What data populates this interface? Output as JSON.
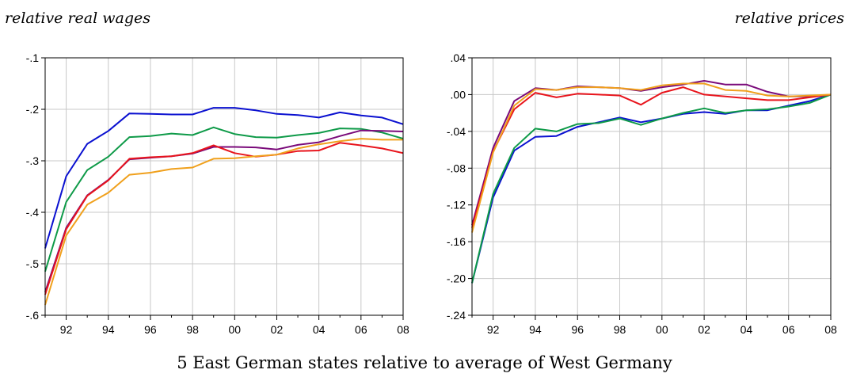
{
  "caption": "5 East German states relative to average of West Germany",
  "colors": {
    "blue": "#0a10d0",
    "green": "#0e9a48",
    "purple": "#7a0a7a",
    "red": "#e8141c",
    "orange": "#f0a01c"
  },
  "chart_data": [
    {
      "type": "line",
      "title": "relative real wages",
      "x": [
        1991,
        1992,
        1993,
        1994,
        1995,
        1996,
        1997,
        1998,
        1999,
        2000,
        2001,
        2002,
        2003,
        2004,
        2005,
        2006,
        2007,
        2008
      ],
      "x_ticks": [
        1992,
        1994,
        1996,
        1998,
        2000,
        2002,
        2004,
        2006,
        2008
      ],
      "x_tick_labels": [
        "92",
        "94",
        "96",
        "98",
        "00",
        "02",
        "04",
        "06",
        "08"
      ],
      "ylim": [
        -0.6,
        -0.1
      ],
      "y_ticks": [
        -0.6,
        -0.5,
        -0.4,
        -0.3,
        -0.2,
        -0.1
      ],
      "y_tick_labels": [
        "-.6",
        "-.5",
        "-.4",
        "-.3",
        "-.2",
        "-.1"
      ],
      "grid": true,
      "series": [
        {
          "color": "#0a10d0",
          "values": [
            -0.47,
            -0.33,
            -0.267,
            -0.242,
            -0.208,
            -0.209,
            -0.21,
            -0.21,
            -0.197,
            -0.197,
            -0.202,
            -0.209,
            -0.211,
            -0.216,
            -0.206,
            -0.212,
            -0.216,
            -0.229
          ]
        },
        {
          "color": "#0e9a48",
          "values": [
            -0.515,
            -0.38,
            -0.318,
            -0.292,
            -0.254,
            -0.252,
            -0.247,
            -0.25,
            -0.235,
            -0.248,
            -0.254,
            -0.255,
            -0.25,
            -0.246,
            -0.237,
            -0.238,
            -0.245,
            -0.257
          ]
        },
        {
          "color": "#7a0a7a",
          "values": [
            -0.555,
            -0.43,
            -0.367,
            -0.337,
            -0.297,
            -0.294,
            -0.291,
            -0.286,
            -0.273,
            -0.273,
            -0.274,
            -0.278,
            -0.269,
            -0.264,
            -0.252,
            -0.241,
            -0.242,
            -0.243
          ]
        },
        {
          "color": "#e8141c",
          "values": [
            -0.56,
            -0.433,
            -0.368,
            -0.338,
            -0.296,
            -0.293,
            -0.291,
            -0.285,
            -0.27,
            -0.285,
            -0.292,
            -0.288,
            -0.281,
            -0.28,
            -0.265,
            -0.27,
            -0.276,
            -0.285
          ]
        },
        {
          "color": "#f0a01c",
          "values": [
            -0.58,
            -0.445,
            -0.385,
            -0.362,
            -0.327,
            -0.323,
            -0.316,
            -0.313,
            -0.296,
            -0.295,
            -0.291,
            -0.288,
            -0.276,
            -0.268,
            -0.262,
            -0.257,
            -0.259,
            -0.259
          ]
        }
      ]
    },
    {
      "type": "line",
      "title": "relative prices",
      "x": [
        1991,
        1992,
        1993,
        1994,
        1995,
        1996,
        1997,
        1998,
        1999,
        2000,
        2001,
        2002,
        2003,
        2004,
        2005,
        2006,
        2007,
        2008
      ],
      "x_ticks": [
        1992,
        1994,
        1996,
        1998,
        2000,
        2002,
        2004,
        2006,
        2008
      ],
      "x_tick_labels": [
        "92",
        "94",
        "96",
        "98",
        "00",
        "02",
        "04",
        "06",
        "08"
      ],
      "ylim": [
        -0.24,
        0.04
      ],
      "y_ticks": [
        -0.24,
        -0.2,
        -0.16,
        -0.12,
        -0.08,
        -0.04,
        0.0,
        0.04
      ],
      "y_tick_labels": [
        "-.24",
        "-.20",
        "-.16",
        "-.12",
        "-.08",
        "-.04",
        ".00",
        ".04"
      ],
      "grid": true,
      "series": [
        {
          "color": "#0a10d0",
          "values": [
            -0.205,
            -0.112,
            -0.061,
            -0.046,
            -0.045,
            -0.035,
            -0.03,
            -0.025,
            -0.03,
            -0.026,
            -0.021,
            -0.019,
            -0.021,
            -0.017,
            -0.017,
            -0.012,
            -0.007,
            0.0
          ]
        },
        {
          "color": "#0e9a48",
          "values": [
            -0.205,
            -0.108,
            -0.058,
            -0.037,
            -0.04,
            -0.032,
            -0.031,
            -0.026,
            -0.033,
            -0.026,
            -0.02,
            -0.015,
            -0.02,
            -0.017,
            -0.016,
            -0.013,
            -0.009,
            0.0
          ]
        },
        {
          "color": "#7a0a7a",
          "values": [
            -0.142,
            -0.058,
            -0.007,
            0.007,
            0.005,
            0.009,
            0.008,
            0.007,
            0.004,
            0.008,
            0.011,
            0.015,
            0.011,
            0.011,
            0.003,
            -0.002,
            -0.002,
            0.0
          ]
        },
        {
          "color": "#e8141c",
          "values": [
            -0.145,
            -0.062,
            -0.016,
            0.002,
            -0.003,
            0.001,
            0.0,
            -0.001,
            -0.011,
            0.002,
            0.008,
            0.0,
            -0.002,
            -0.004,
            -0.006,
            -0.006,
            -0.003,
            0.0
          ]
        },
        {
          "color": "#f0a01c",
          "values": [
            -0.15,
            -0.063,
            -0.012,
            0.006,
            0.005,
            0.008,
            0.008,
            0.007,
            0.005,
            0.01,
            0.012,
            0.012,
            0.005,
            0.004,
            -0.001,
            -0.002,
            -0.001,
            0.0
          ]
        }
      ]
    }
  ]
}
